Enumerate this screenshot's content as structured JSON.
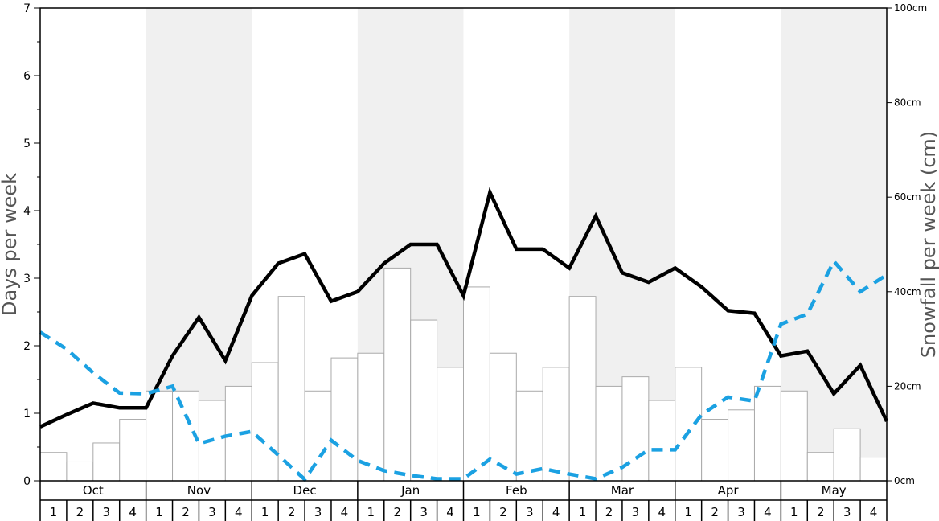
{
  "chart_data": {
    "type": "bar",
    "ylabel_left": "Days per week",
    "ylabel_right": "Snowfall per week (cm)",
    "ylim_left": [
      0,
      7
    ],
    "yticks_left": [
      "0",
      "1",
      "2",
      "3",
      "4",
      "5",
      "6",
      "7"
    ],
    "ylim_right": [
      0,
      100
    ],
    "yticks_right": [
      "0cm",
      "20cm",
      "40cm",
      "60cm",
      "80cm",
      "100cm"
    ],
    "months": [
      "Oct",
      "Nov",
      "Dec",
      "Jan",
      "Feb",
      "Mar",
      "Apr",
      "May"
    ],
    "week_labels": [
      "1",
      "2",
      "3",
      "4"
    ],
    "shaded_months": [
      "Nov",
      "Jan",
      "Mar",
      "May"
    ],
    "colors": {
      "bars_fill": "#ffffff",
      "bars_stroke": "#aaaaaa",
      "solid_line": "#000000",
      "dashed_line": "#1ba1e2",
      "shade": "#f0f0f0"
    },
    "series": [
      {
        "type": "bar",
        "axis": "right",
        "values": [
          6,
          4,
          8,
          13,
          19,
          19,
          17,
          20,
          25,
          39,
          19,
          26,
          27,
          45,
          34,
          24,
          41,
          27,
          19,
          24,
          39,
          20,
          22,
          17,
          24,
          13,
          15,
          20,
          19,
          6,
          11,
          5
        ]
      },
      {
        "type": "line",
        "style": "solid",
        "axis": "left",
        "values": [
          0.8,
          0.98,
          1.15,
          1.08,
          1.08,
          1.85,
          2.42,
          1.78,
          2.74,
          3.22,
          3.36,
          2.66,
          2.8,
          3.22,
          3.5,
          3.5,
          2.74,
          4.27,
          3.43,
          3.43,
          3.15,
          3.92,
          3.08,
          2.94,
          3.15,
          2.87,
          2.52,
          2.48,
          1.85,
          1.92,
          1.29,
          1.71,
          0.88
        ]
      },
      {
        "type": "line",
        "style": "dashed",
        "axis": "left",
        "values": [
          2.2,
          1.95,
          1.6,
          1.3,
          1.29,
          1.4,
          0.55,
          0.66,
          0.73,
          0.38,
          0.02,
          0.6,
          0.3,
          0.15,
          0.08,
          0.03,
          0.03,
          0.32,
          0.1,
          0.18,
          0.1,
          0.03,
          0.2,
          0.46,
          0.46,
          0.98,
          1.24,
          1.18,
          2.32,
          2.47,
          3.25,
          2.8,
          3.05
        ]
      }
    ]
  }
}
